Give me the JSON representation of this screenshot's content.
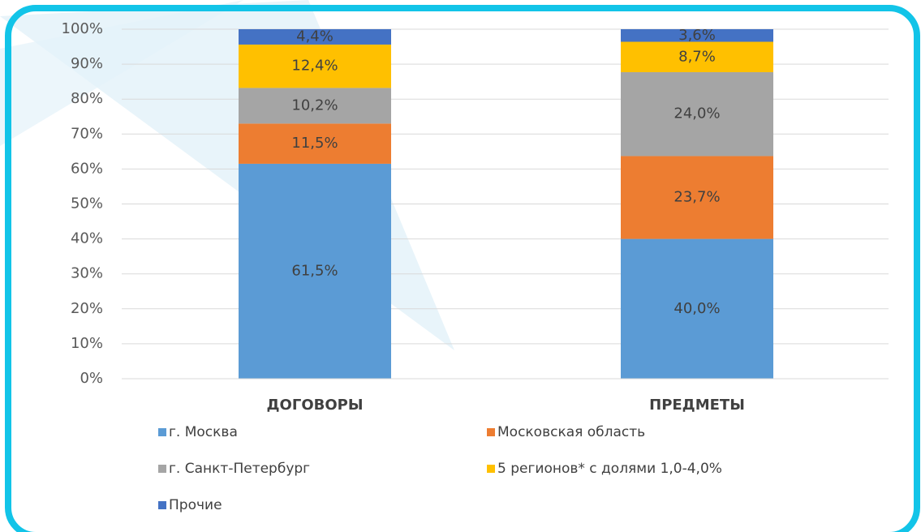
{
  "chart_data": {
    "type": "stacked-bar",
    "categories": [
      "ДОГОВОРЫ",
      "ПРЕДМЕТЫ"
    ],
    "series": [
      {
        "name": "г. Москва",
        "color": "#5b9bd5",
        "values": [
          61.5,
          40.0
        ],
        "value_labels": [
          "61,5%",
          "40,0%"
        ]
      },
      {
        "name": "Московская область",
        "color": "#ed7d31",
        "values": [
          11.5,
          23.7
        ],
        "value_labels": [
          "11,5%",
          "23,7%"
        ]
      },
      {
        "name": "г. Санкт-Петербург",
        "color": "#a5a5a5",
        "values": [
          10.2,
          24.0
        ],
        "value_labels": [
          "10,2%",
          "24,0%"
        ]
      },
      {
        "name": "5 регионов* с долями 1,0-4,0%",
        "color": "#ffc000",
        "values": [
          12.4,
          8.7
        ],
        "value_labels": [
          "12,4%",
          "8,7%"
        ]
      },
      {
        "name": "Прочие",
        "color": "#4472c4",
        "values": [
          4.4,
          3.6
        ],
        "value_labels": [
          "4,4%",
          "3,6%"
        ]
      }
    ],
    "ylim": [
      0,
      100
    ],
    "yticks": [
      {
        "value": 0,
        "label": "0%"
      },
      {
        "value": 10,
        "label": "10%"
      },
      {
        "value": 20,
        "label": "20%"
      },
      {
        "value": 30,
        "label": "30%"
      },
      {
        "value": 40,
        "label": "40%"
      },
      {
        "value": 50,
        "label": "50%"
      },
      {
        "value": 60,
        "label": "60%"
      },
      {
        "value": 70,
        "label": "70%"
      },
      {
        "value": 80,
        "label": "80%"
      },
      {
        "value": 90,
        "label": "90%"
      },
      {
        "value": 100,
        "label": "100%"
      }
    ],
    "grid": true,
    "legend": "bottom"
  }
}
